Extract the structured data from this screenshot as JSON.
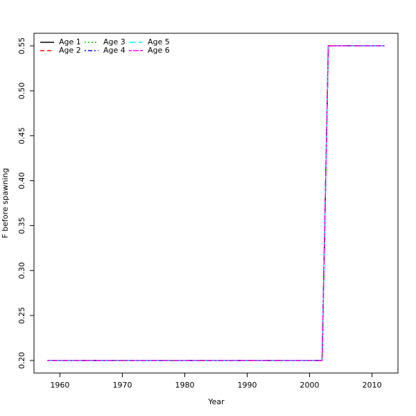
{
  "chart_data": {
    "type": "line",
    "x_label": "Year",
    "y_label": "F before spawning",
    "x": [
      1958,
      1959,
      1960,
      1961,
      1962,
      1963,
      1964,
      1965,
      1966,
      1967,
      1968,
      1969,
      1970,
      1971,
      1972,
      1973,
      1974,
      1975,
      1976,
      1977,
      1978,
      1979,
      1980,
      1981,
      1982,
      1983,
      1984,
      1985,
      1986,
      1987,
      1988,
      1989,
      1990,
      1991,
      1992,
      1993,
      1994,
      1995,
      1996,
      1997,
      1998,
      1999,
      2000,
      2001,
      2002,
      2003,
      2004,
      2005,
      2006,
      2007,
      2008,
      2009,
      2010,
      2011,
      2012
    ],
    "series": [
      {
        "name": "Age 1",
        "color": "#000000",
        "dash": "solid",
        "values": [
          0.2,
          0.2,
          0.2,
          0.2,
          0.2,
          0.2,
          0.2,
          0.2,
          0.2,
          0.2,
          0.2,
          0.2,
          0.2,
          0.2,
          0.2,
          0.2,
          0.2,
          0.2,
          0.2,
          0.2,
          0.2,
          0.2,
          0.2,
          0.2,
          0.2,
          0.2,
          0.2,
          0.2,
          0.2,
          0.2,
          0.2,
          0.2,
          0.2,
          0.2,
          0.2,
          0.2,
          0.2,
          0.2,
          0.2,
          0.2,
          0.2,
          0.2,
          0.2,
          0.2,
          0.2,
          0.55,
          0.55,
          0.55,
          0.55,
          0.55,
          0.55,
          0.55,
          0.55,
          0.55,
          0.55
        ]
      },
      {
        "name": "Age 2",
        "color": "#ff0000",
        "dash": "dashed",
        "values": [
          0.2,
          0.2,
          0.2,
          0.2,
          0.2,
          0.2,
          0.2,
          0.2,
          0.2,
          0.2,
          0.2,
          0.2,
          0.2,
          0.2,
          0.2,
          0.2,
          0.2,
          0.2,
          0.2,
          0.2,
          0.2,
          0.2,
          0.2,
          0.2,
          0.2,
          0.2,
          0.2,
          0.2,
          0.2,
          0.2,
          0.2,
          0.2,
          0.2,
          0.2,
          0.2,
          0.2,
          0.2,
          0.2,
          0.2,
          0.2,
          0.2,
          0.2,
          0.2,
          0.2,
          0.2,
          0.55,
          0.55,
          0.55,
          0.55,
          0.55,
          0.55,
          0.55,
          0.55,
          0.55,
          0.55
        ]
      },
      {
        "name": "Age 3",
        "color": "#00cd00",
        "dash": "dotted",
        "values": [
          0.2,
          0.2,
          0.2,
          0.2,
          0.2,
          0.2,
          0.2,
          0.2,
          0.2,
          0.2,
          0.2,
          0.2,
          0.2,
          0.2,
          0.2,
          0.2,
          0.2,
          0.2,
          0.2,
          0.2,
          0.2,
          0.2,
          0.2,
          0.2,
          0.2,
          0.2,
          0.2,
          0.2,
          0.2,
          0.2,
          0.2,
          0.2,
          0.2,
          0.2,
          0.2,
          0.2,
          0.2,
          0.2,
          0.2,
          0.2,
          0.2,
          0.2,
          0.2,
          0.2,
          0.2,
          0.55,
          0.55,
          0.55,
          0.55,
          0.55,
          0.55,
          0.55,
          0.55,
          0.55,
          0.55
        ]
      },
      {
        "name": "Age 4",
        "color": "#0000ff",
        "dash": "dotdash",
        "values": [
          0.2,
          0.2,
          0.2,
          0.2,
          0.2,
          0.2,
          0.2,
          0.2,
          0.2,
          0.2,
          0.2,
          0.2,
          0.2,
          0.2,
          0.2,
          0.2,
          0.2,
          0.2,
          0.2,
          0.2,
          0.2,
          0.2,
          0.2,
          0.2,
          0.2,
          0.2,
          0.2,
          0.2,
          0.2,
          0.2,
          0.2,
          0.2,
          0.2,
          0.2,
          0.2,
          0.2,
          0.2,
          0.2,
          0.2,
          0.2,
          0.2,
          0.2,
          0.2,
          0.2,
          0.2,
          0.55,
          0.55,
          0.55,
          0.55,
          0.55,
          0.55,
          0.55,
          0.55,
          0.55,
          0.55
        ]
      },
      {
        "name": "Age 5",
        "color": "#00ffff",
        "dash": "longdash",
        "values": [
          0.2,
          0.2,
          0.2,
          0.2,
          0.2,
          0.2,
          0.2,
          0.2,
          0.2,
          0.2,
          0.2,
          0.2,
          0.2,
          0.2,
          0.2,
          0.2,
          0.2,
          0.2,
          0.2,
          0.2,
          0.2,
          0.2,
          0.2,
          0.2,
          0.2,
          0.2,
          0.2,
          0.2,
          0.2,
          0.2,
          0.2,
          0.2,
          0.2,
          0.2,
          0.2,
          0.2,
          0.2,
          0.2,
          0.2,
          0.2,
          0.2,
          0.2,
          0.2,
          0.2,
          0.2,
          0.55,
          0.55,
          0.55,
          0.55,
          0.55,
          0.55,
          0.55,
          0.55,
          0.55,
          0.55
        ]
      },
      {
        "name": "Age 6",
        "color": "#ff00ff",
        "dash": "twodash",
        "values": [
          0.2,
          0.2,
          0.2,
          0.2,
          0.2,
          0.2,
          0.2,
          0.2,
          0.2,
          0.2,
          0.2,
          0.2,
          0.2,
          0.2,
          0.2,
          0.2,
          0.2,
          0.2,
          0.2,
          0.2,
          0.2,
          0.2,
          0.2,
          0.2,
          0.2,
          0.2,
          0.2,
          0.2,
          0.2,
          0.2,
          0.2,
          0.2,
          0.2,
          0.2,
          0.2,
          0.2,
          0.2,
          0.2,
          0.2,
          0.2,
          0.2,
          0.2,
          0.2,
          0.2,
          0.2,
          0.55,
          0.55,
          0.55,
          0.55,
          0.55,
          0.55,
          0.55,
          0.55,
          0.55,
          0.55
        ]
      }
    ],
    "xlim": [
      1955.84,
      2014.16
    ],
    "xticks": [
      1960,
      1970,
      1980,
      1990,
      2000,
      2010
    ],
    "ylim": [
      0.186,
      0.564
    ],
    "yticks": [
      {
        "value": 0.2,
        "label": "0.20"
      },
      0.25,
      {
        "value": 0.3,
        "label": "0.30"
      },
      0.35,
      {
        "value": 0.4,
        "label": "0.40"
      },
      0.45,
      {
        "value": 0.5,
        "label": "0.50"
      },
      0.55
    ],
    "legend": "top-left",
    "grid": false
  }
}
